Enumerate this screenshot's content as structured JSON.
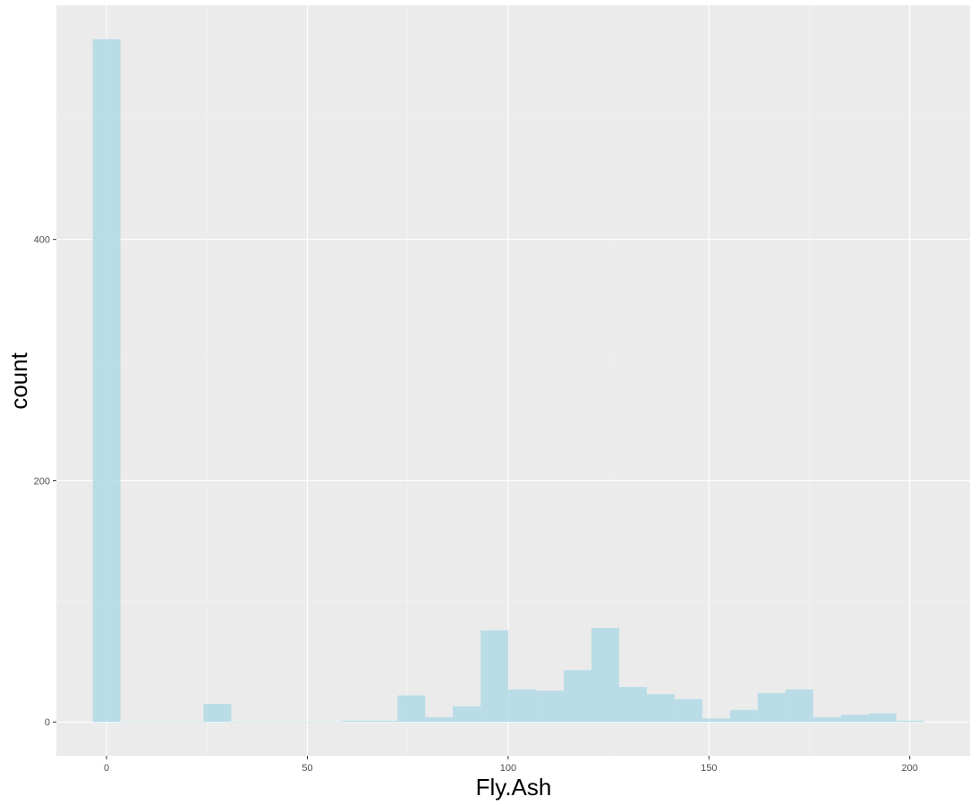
{
  "chart_data": {
    "type": "bar",
    "title": "",
    "xlabel": "Fly.Ash",
    "ylabel": "count",
    "xlim": [
      -12.5,
      215
    ],
    "ylim": [
      -28,
      594
    ],
    "x_breaks": [
      0,
      50,
      100,
      150,
      200
    ],
    "y_breaks": [
      0,
      200,
      400
    ],
    "x_tick_labels": [
      "0",
      "50",
      "100",
      "150",
      "200"
    ],
    "y_tick_labels": [
      "0",
      "200",
      "400"
    ],
    "grid": true,
    "legend": "none",
    "bin_width": 6.9,
    "bins": [
      {
        "x": 0,
        "count": 566
      },
      {
        "x": 6.9,
        "count": 0
      },
      {
        "x": 13.8,
        "count": 0
      },
      {
        "x": 20.7,
        "count": 0
      },
      {
        "x": 27.6,
        "count": 15
      },
      {
        "x": 34.5,
        "count": 0
      },
      {
        "x": 41.4,
        "count": 0
      },
      {
        "x": 48.3,
        "count": 0
      },
      {
        "x": 55.2,
        "count": 0
      },
      {
        "x": 62.1,
        "count": 1
      },
      {
        "x": 69.0,
        "count": 1
      },
      {
        "x": 75.9,
        "count": 22
      },
      {
        "x": 82.8,
        "count": 4
      },
      {
        "x": 89.7,
        "count": 13
      },
      {
        "x": 96.6,
        "count": 76
      },
      {
        "x": 103.5,
        "count": 27
      },
      {
        "x": 110.4,
        "count": 26
      },
      {
        "x": 117.3,
        "count": 43
      },
      {
        "x": 124.2,
        "count": 78
      },
      {
        "x": 131.1,
        "count": 29
      },
      {
        "x": 138.0,
        "count": 23
      },
      {
        "x": 144.9,
        "count": 19
      },
      {
        "x": 151.8,
        "count": 3
      },
      {
        "x": 158.7,
        "count": 10
      },
      {
        "x": 165.6,
        "count": 24
      },
      {
        "x": 172.5,
        "count": 27
      },
      {
        "x": 179.4,
        "count": 4
      },
      {
        "x": 186.3,
        "count": 6
      },
      {
        "x": 193.2,
        "count": 7
      },
      {
        "x": 200.1,
        "count": 1
      }
    ]
  },
  "colors": {
    "panel_background": "#ebebeb",
    "grid_major": "#ffffff",
    "grid_minor": "#f2f2f2",
    "bar_fill": "#add8e6",
    "bar_opacity": 0.8,
    "tick_text": "#4d4d4d",
    "tick_mark": "#333333",
    "axis_title": "#000000"
  }
}
